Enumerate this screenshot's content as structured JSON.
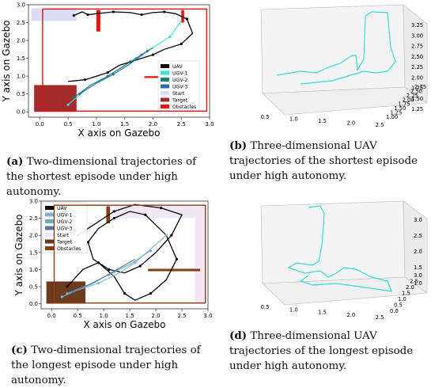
{
  "figure": {
    "panels": [
      {
        "id": "a",
        "caption_label": "(a)",
        "caption_text": "Two-dimensional trajectories of the shortest episode under high autonomy.",
        "chart_data": {
          "type": "line",
          "xlabel": "X axis on Gazebo",
          "ylabel": "Y axis on Gazebo",
          "xlim": [
            -0.2,
            3.0
          ],
          "ylim": [
            -0.15,
            3.0
          ],
          "xticks": [
            "0.0",
            "0.5",
            "1.0",
            "1.5",
            "2.0",
            "2.5",
            "3.0"
          ],
          "yticks": [
            "0.0",
            "0.5",
            "1.0",
            "1.5",
            "2.0",
            "2.5",
            "3.0"
          ],
          "legend": [
            "UAV",
            "UGV-1",
            "UGV-2",
            "UGV-3",
            "Start",
            "Target",
            "Obstacles"
          ],
          "legend_placement": "right",
          "colors": {
            "UAV": "#000000",
            "UGV-1": "#40e0d0",
            "UGV-2": "#1a7f7f",
            "UGV-3": "#2a6fa8",
            "Start": "#dcdcf6",
            "Target": "#a52a2a",
            "Obstacles": "#ee1111"
          },
          "series": [
            {
              "name": "UAV",
              "x": [
                0.6,
                0.75,
                0.85,
                1.0,
                1.3,
                1.6,
                1.8,
                2.0,
                2.2,
                2.4,
                2.6,
                2.7,
                2.5,
                2.2,
                2.0,
                1.8,
                1.6,
                1.4,
                1.2,
                1.0,
                0.8,
                0.5
              ],
              "y": [
                2.7,
                2.8,
                2.72,
                2.75,
                2.8,
                2.78,
                2.72,
                2.78,
                2.8,
                2.75,
                2.6,
                2.2,
                1.9,
                1.75,
                1.6,
                1.5,
                1.4,
                1.3,
                1.1,
                1.0,
                0.9,
                0.85
              ]
            },
            {
              "name": "UGV-1",
              "x": [
                0.5,
                0.8,
                1.1,
                1.4,
                1.7,
                2.0,
                2.3,
                2.5
              ],
              "y": [
                0.2,
                0.6,
                0.9,
                1.2,
                1.5,
                1.8,
                2.1,
                2.55
              ]
            },
            {
              "name": "UGV-2",
              "x": [
                0.6,
                0.9,
                1.2,
                1.5,
                1.8,
                2.0
              ],
              "y": [
                0.4,
                0.75,
                1.0,
                1.3,
                1.6,
                1.8
              ]
            },
            {
              "name": "UGV-3",
              "x": [
                0.7,
                1.0,
                1.3,
                1.6,
                1.9
              ],
              "y": [
                0.5,
                0.8,
                1.05,
                1.35,
                1.7
              ]
            }
          ]
        }
      },
      {
        "id": "b",
        "caption_label": "(b)",
        "caption_text": "Three-dimensional UAV trajectories of the shortest episode under high autonomy.",
        "chart_data": {
          "type": "line",
          "xticks": [
            "0.5",
            "1.0",
            "1.5",
            "2.0",
            "2.5"
          ],
          "yticks": [
            "1.00",
            "1.25",
            "1.50",
            "1.75",
            "2.00",
            "2.25",
            "2.50",
            "2.75"
          ],
          "zticks": [
            "1.25",
            "1.50",
            "1.75",
            "2.00",
            "2.25",
            "2.50",
            "2.75",
            "3.00",
            "3.25"
          ],
          "colors": {
            "UAV": "#40d8d0"
          }
        }
      },
      {
        "id": "c",
        "caption_label": "(c)",
        "caption_text": "Two-dimensional trajectories of the longest episode under high autonomy.",
        "chart_data": {
          "type": "line",
          "xlabel": "X axis on Gazebo",
          "ylabel": "Y axis on Gazebo",
          "xlim": [
            -0.2,
            3.0
          ],
          "ylim": [
            -0.15,
            3.0
          ],
          "xticks": [
            "0.0",
            "0.5",
            "1.0",
            "1.5",
            "2.0",
            "2.5",
            "3.0"
          ],
          "yticks": [
            "0.0",
            "0.5",
            "1.0",
            "1.5",
            "2.0",
            "2.5",
            "3.0"
          ],
          "legend": [
            "UAV",
            "UGV-1",
            "UGV-2",
            "UGV-3",
            "Start",
            "Target",
            "Obstacles"
          ],
          "legend_placement": "top-left",
          "colors": {
            "UAV": "#000000",
            "UGV-1": "#7fb3d5",
            "UGV-2": "#6aaec0",
            "UGV-3": "#5577aa",
            "Start": "#f3e6f6",
            "Target": "#6b3a1f",
            "Obstacles": "#8a3d12"
          },
          "series": [
            {
              "name": "UAV",
              "x": [
                0.3,
                0.6,
                0.9,
                1.2,
                1.4,
                1.6,
                1.9,
                2.2,
                2.4,
                2.2,
                1.8,
                1.5,
                1.2,
                0.9,
                0.7,
                0.8,
                1.1,
                1.4,
                1.7,
                2.0,
                2.3,
                2.5,
                2.1,
                1.6,
                1.2,
                0.9,
                0.5
              ],
              "y": [
                0.5,
                1.0,
                1.2,
                0.8,
                0.3,
                0.1,
                0.3,
                0.7,
                1.3,
                2.0,
                2.6,
                2.7,
                2.5,
                2.2,
                1.8,
                1.3,
                1.0,
                0.9,
                1.1,
                1.5,
                2.0,
                2.6,
                2.8,
                2.9,
                2.7,
                2.4,
                2.0
              ]
            },
            {
              "name": "UGV-1",
              "x": [
                0.2,
                0.5,
                0.9,
                1.3,
                1.6,
                1.9,
                2.2
              ],
              "y": [
                0.2,
                0.4,
                0.6,
                0.9,
                1.2,
                1.6,
                2.0
              ]
            },
            {
              "name": "UGV-2",
              "x": [
                0.3,
                0.7,
                1.1,
                1.5,
                1.9
              ],
              "y": [
                0.3,
                0.55,
                0.85,
                1.15,
                1.55
              ]
            },
            {
              "name": "UGV-3",
              "x": [
                0.4,
                0.8,
                1.2,
                1.6
              ],
              "y": [
                0.35,
                0.6,
                0.95,
                1.3
              ]
            }
          ]
        }
      },
      {
        "id": "d",
        "caption_label": "(d)",
        "caption_text": "Three-dimensional UAV trajectories of the longest episode under high autonomy.",
        "chart_data": {
          "type": "line",
          "xticks": [
            "0.5",
            "1.0",
            "1.5",
            "2.0",
            "2.5"
          ],
          "yticks": [
            "0.0",
            "0.5",
            "1.0",
            "1.5",
            "2.0",
            "2.5",
            "3.0"
          ],
          "zticks": [
            "1.0",
            "1.5",
            "2.0",
            "2.5",
            "3.0"
          ],
          "colors": {
            "UAV": "#40d8d0"
          }
        }
      }
    ]
  }
}
